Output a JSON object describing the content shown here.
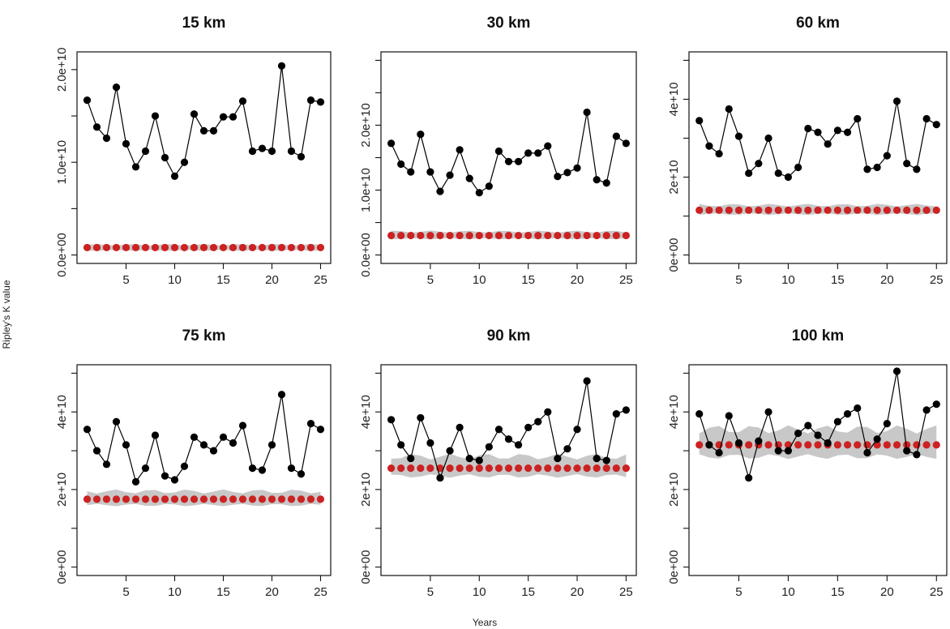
{
  "figure": {
    "ylabel": "Ripley's K value",
    "xlabel": "Years"
  },
  "colors": {
    "observed": "#000000",
    "expected": "#cc2222",
    "envelope": "#c8c8c8"
  },
  "chart_data": [
    {
      "type": "scatter",
      "title": "15 km",
      "xlim": [
        1,
        25
      ],
      "ylim": [
        0,
        21000000000.0
      ],
      "xticks": [
        "5",
        "10",
        "15",
        "20",
        "25"
      ],
      "yticks": [
        {
          "v": 0,
          "t": "0.0e+00"
        },
        {
          "v": 10000000000.0,
          "t": "1.0e+10"
        },
        {
          "v": 20000000000.0,
          "t": "2.0e+10"
        }
      ],
      "x": [
        1,
        2,
        3,
        4,
        5,
        6,
        7,
        8,
        9,
        10,
        11,
        12,
        13,
        14,
        15,
        16,
        17,
        18,
        19,
        20,
        21,
        22,
        23,
        24,
        25
      ],
      "observed": [
        1.67,
        1.38,
        1.26,
        1.81,
        1.2,
        0.95,
        1.12,
        1.5,
        1.05,
        0.85,
        1.0,
        1.52,
        1.34,
        1.34,
        1.49,
        1.49,
        1.66,
        1.12,
        1.15,
        1.12,
        2.04,
        1.12,
        1.06,
        1.67,
        1.65
      ],
      "expected": 0.08,
      "envelope": [
        0.05,
        0.11
      ],
      "scale": 10000000000.0
    },
    {
      "type": "scatter",
      "title": "30 km",
      "xlim": [
        1,
        25
      ],
      "ylim": [
        0,
        30000000000.0
      ],
      "xticks": [
        "5",
        "10",
        "15",
        "20",
        "25"
      ],
      "yticks": [
        {
          "v": 0,
          "t": "0.0e+00"
        },
        {
          "v": 10000000000.0,
          "t": "1.0e+10"
        },
        {
          "v": 20000000000.0,
          "t": "2.0e+10"
        }
      ],
      "x": [
        1,
        2,
        3,
        4,
        5,
        6,
        7,
        8,
        9,
        10,
        11,
        12,
        13,
        14,
        15,
        16,
        17,
        18,
        19,
        20,
        21,
        22,
        23,
        24,
        25
      ],
      "observed": [
        1.72,
        1.4,
        1.28,
        1.86,
        1.28,
        0.98,
        1.23,
        1.62,
        1.18,
        0.96,
        1.06,
        1.6,
        1.44,
        1.44,
        1.57,
        1.57,
        1.68,
        1.21,
        1.27,
        1.34,
        2.2,
        1.16,
        1.11,
        1.83,
        1.72
      ],
      "expected": 0.3,
      "envelope": [
        0.25,
        0.36
      ],
      "scale": 10000000000.0
    },
    {
      "type": "scatter",
      "title": "60 km",
      "xlim": [
        1,
        25
      ],
      "ylim": [
        0,
        50000000000.0
      ],
      "xticks": [
        "5",
        "10",
        "15",
        "20",
        "25"
      ],
      "yticks": [
        {
          "v": 0,
          "t": "0e+00"
        },
        {
          "v": 20000000000.0,
          "t": "2e+10"
        },
        {
          "v": 40000000000.0,
          "t": "4e+10"
        }
      ],
      "x": [
        1,
        2,
        3,
        4,
        5,
        6,
        7,
        8,
        9,
        10,
        11,
        12,
        13,
        14,
        15,
        16,
        17,
        18,
        19,
        20,
        21,
        22,
        23,
        24,
        25
      ],
      "observed": [
        3.45,
        2.8,
        2.6,
        3.75,
        3.05,
        2.1,
        2.35,
        3.0,
        2.1,
        2.0,
        2.25,
        3.25,
        3.15,
        2.85,
        3.2,
        3.15,
        3.5,
        2.2,
        2.25,
        2.55,
        3.95,
        2.35,
        2.2,
        3.5,
        3.35
      ],
      "expected": 1.15,
      "envelope": [
        1.05,
        1.28
      ],
      "scale": 10000000000.0
    },
    {
      "type": "scatter",
      "title": "75 km",
      "xlim": [
        1,
        25
      ],
      "ylim": [
        0,
        50000000000.0
      ],
      "xticks": [
        "5",
        "10",
        "15",
        "20",
        "25"
      ],
      "yticks": [
        {
          "v": 0,
          "t": "0e+00"
        },
        {
          "v": 20000000000.0,
          "t": "2e+10"
        },
        {
          "v": 40000000000.0,
          "t": "4e+10"
        }
      ],
      "x": [
        1,
        2,
        3,
        4,
        5,
        6,
        7,
        8,
        9,
        10,
        11,
        12,
        13,
        14,
        15,
        16,
        17,
        18,
        19,
        20,
        21,
        22,
        23,
        24,
        25
      ],
      "observed": [
        3.55,
        3.0,
        2.65,
        3.75,
        3.15,
        2.2,
        2.55,
        3.4,
        2.35,
        2.25,
        2.6,
        3.35,
        3.15,
        3.0,
        3.35,
        3.2,
        3.65,
        2.55,
        2.5,
        3.15,
        4.45,
        2.55,
        2.4,
        3.7,
        3.55
      ],
      "expected": 1.75,
      "envelope": [
        1.6,
        1.95
      ],
      "scale": 10000000000.0
    },
    {
      "type": "scatter",
      "title": "90 km",
      "xlim": [
        1,
        25
      ],
      "ylim": [
        0,
        50000000000.0
      ],
      "xticks": [
        "5",
        "10",
        "15",
        "20",
        "25"
      ],
      "yticks": [
        {
          "v": 0,
          "t": "0e+00"
        },
        {
          "v": 20000000000.0,
          "t": "2e+10"
        },
        {
          "v": 40000000000.0,
          "t": "4e+10"
        }
      ],
      "x": [
        1,
        2,
        3,
        4,
        5,
        6,
        7,
        8,
        9,
        10,
        11,
        12,
        13,
        14,
        15,
        16,
        17,
        18,
        19,
        20,
        21,
        22,
        23,
        24,
        25
      ],
      "observed": [
        3.8,
        3.15,
        2.8,
        3.85,
        3.2,
        2.3,
        3.0,
        3.6,
        2.8,
        2.75,
        3.1,
        3.55,
        3.3,
        3.15,
        3.6,
        3.75,
        4.0,
        2.8,
        3.05,
        3.55,
        4.8,
        2.8,
        2.75,
        3.95,
        4.05
      ],
      "expected": 2.55,
      "envelope": [
        2.35,
        2.85
      ],
      "scale": 10000000000.0
    },
    {
      "type": "scatter",
      "title": "100 km",
      "xlim": [
        1,
        25
      ],
      "ylim": [
        0,
        50000000000.0
      ],
      "xticks": [
        "5",
        "10",
        "15",
        "20",
        "25"
      ],
      "yticks": [
        {
          "v": 0,
          "t": "0e+00"
        },
        {
          "v": 20000000000.0,
          "t": "2e+10"
        },
        {
          "v": 40000000000.0,
          "t": "4e+10"
        }
      ],
      "x": [
        1,
        2,
        3,
        4,
        5,
        6,
        7,
        8,
        9,
        10,
        11,
        12,
        13,
        14,
        15,
        16,
        17,
        18,
        19,
        20,
        21,
        22,
        23,
        24,
        25
      ],
      "observed": [
        3.95,
        3.15,
        2.95,
        3.9,
        3.2,
        2.3,
        3.25,
        4.0,
        3.0,
        3.0,
        3.45,
        3.65,
        3.4,
        3.2,
        3.75,
        3.95,
        4.1,
        2.95,
        3.3,
        3.7,
        5.05,
        3.0,
        2.9,
        4.05,
        4.2
      ],
      "expected": 3.15,
      "envelope": [
        2.85,
        3.55
      ],
      "scale": 10000000000.0
    }
  ]
}
